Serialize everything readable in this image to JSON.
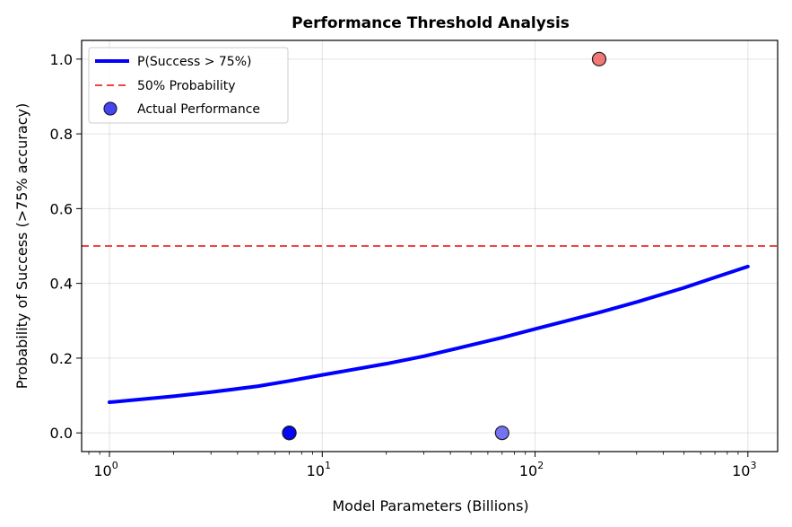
{
  "chart_data": {
    "type": "scatter",
    "title": "Performance Threshold Analysis",
    "xlabel": "Model Parameters (Billions)",
    "ylabel": "Probability of Success (>75% accuracy)",
    "x_scale": "log",
    "xlim": [
      0.74,
      1380
    ],
    "ylim": [
      -0.05,
      1.05
    ],
    "grid": true,
    "legend_position": "top-left",
    "x_ticks": [
      {
        "value": 1,
        "base": "10",
        "exp": "0"
      },
      {
        "value": 10,
        "base": "10",
        "exp": "1"
      },
      {
        "value": 100,
        "base": "10",
        "exp": "2"
      },
      {
        "value": 1000,
        "base": "10",
        "exp": "3"
      }
    ],
    "y_ticks": [
      {
        "value": 0.0,
        "label": "0.0"
      },
      {
        "value": 0.2,
        "label": "0.2"
      },
      {
        "value": 0.4,
        "label": "0.4"
      },
      {
        "value": 0.6,
        "label": "0.6"
      },
      {
        "value": 0.8,
        "label": "0.8"
      },
      {
        "value": 1.0,
        "label": "1.0"
      }
    ],
    "curve": {
      "name": "P(Success > 75%)",
      "color": "#0000ff",
      "x": [
        1,
        2,
        3,
        5,
        7,
        10,
        20,
        30,
        50,
        70,
        100,
        200,
        300,
        500,
        700,
        1000
      ],
      "y": [
        0.082,
        0.098,
        0.109,
        0.125,
        0.139,
        0.155,
        0.185,
        0.205,
        0.235,
        0.255,
        0.278,
        0.322,
        0.35,
        0.388,
        0.416,
        0.445
      ]
    },
    "threshold": {
      "name": "50% Probability",
      "value": 0.5,
      "color": "#ef4444"
    },
    "scatter": {
      "name": "Actual Performance",
      "points": [
        {
          "x": 7,
          "y": 0,
          "color": "#0000ff"
        },
        {
          "x": 7,
          "y": 0,
          "color": "#0000ff"
        },
        {
          "x": 7,
          "y": 0,
          "color": "#0000ff"
        },
        {
          "x": 70,
          "y": 0,
          "color": "#3f3fef"
        },
        {
          "x": 200,
          "y": 1,
          "color": "#ef4444"
        }
      ],
      "legend_color": "#4646f0"
    }
  }
}
